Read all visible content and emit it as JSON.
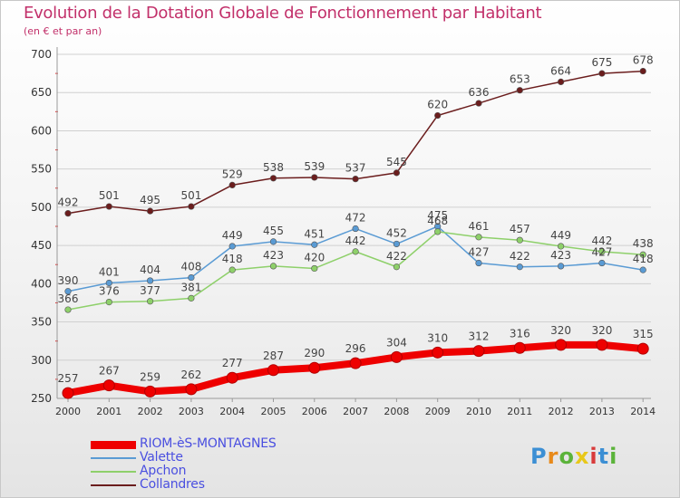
{
  "title": "Evolution de la Dotation Globale de Fonctionnement par Habitant",
  "subtitle": "(en € et par an)",
  "logo": "Proxiti",
  "colors": {
    "title": "#c2306a",
    "axis_text": "#333333",
    "grid": "#d0d0d0",
    "legend_text": "#4a4fe0"
  },
  "chart_data": {
    "type": "line",
    "title": "Evolution de la Dotation Globale de Fonctionnement par Habitant",
    "subtitle": "(en € et par an)",
    "xlabel": "",
    "ylabel": "",
    "x": [
      "2000",
      "2001",
      "2002",
      "2003",
      "2004",
      "2005",
      "2006",
      "2007",
      "2008",
      "2009",
      "2010",
      "2011",
      "2012",
      "2013",
      "2014"
    ],
    "ylim": [
      250,
      700
    ],
    "yticks": [
      250,
      300,
      350,
      400,
      450,
      500,
      550,
      600,
      650,
      700
    ],
    "grid": "horizontal",
    "legend_position": "bottom-left",
    "series": [
      {
        "name": "RIOM-èS-MONTAGNES",
        "color": "#ee0000",
        "emphasis": true,
        "values": [
          257,
          267,
          259,
          262,
          277,
          287,
          290,
          296,
          304,
          310,
          312,
          316,
          320,
          320,
          315
        ]
      },
      {
        "name": "Valette",
        "color": "#5a9bd4",
        "values": [
          390,
          401,
          404,
          408,
          449,
          455,
          451,
          472,
          452,
          475,
          427,
          422,
          423,
          427,
          418
        ]
      },
      {
        "name": "Apchon",
        "color": "#8ed06a",
        "values": [
          366,
          376,
          377,
          381,
          418,
          423,
          420,
          442,
          422,
          468,
          461,
          457,
          449,
          442,
          438
        ]
      },
      {
        "name": "Collandres",
        "color": "#6b1d1d",
        "values": [
          492,
          501,
          495,
          501,
          529,
          538,
          539,
          537,
          545,
          620,
          636,
          653,
          664,
          675,
          678
        ]
      }
    ]
  }
}
